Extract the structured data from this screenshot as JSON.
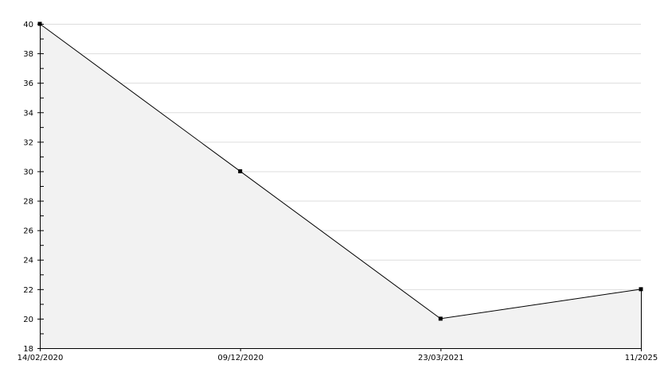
{
  "chart_data": {
    "type": "area",
    "title": "",
    "xlabel": "",
    "ylabel": "",
    "categories": [
      "14/02/2020",
      "09/12/2020",
      "23/03/2021",
      "11/2025"
    ],
    "values": [
      40,
      30,
      20,
      22
    ],
    "ylim": [
      18,
      40
    ],
    "ytick_step": 2,
    "yticks": [
      "18",
      "20",
      "22",
      "24",
      "26",
      "28",
      "30",
      "32",
      "34",
      "36",
      "38",
      "40"
    ],
    "grid": true,
    "legend": "none",
    "colors": {
      "line": "#000000",
      "fill": "#f2f2f2",
      "grid": "#dddddd",
      "marker": "#000000"
    }
  }
}
